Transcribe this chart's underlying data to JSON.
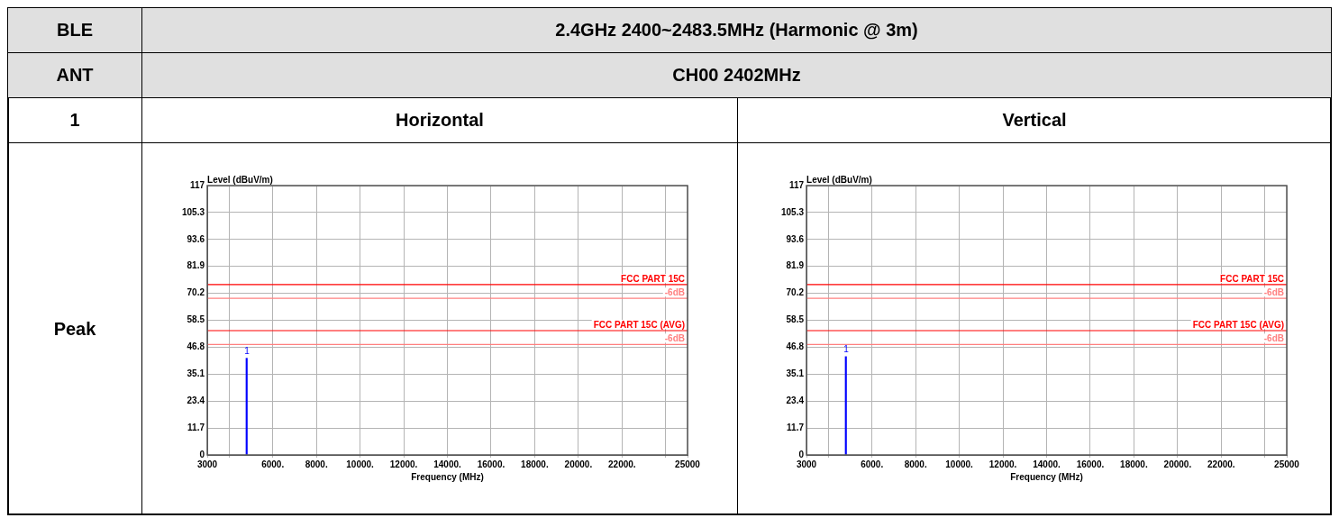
{
  "chart_data": [
    {
      "type": "bar",
      "title": "Horizontal",
      "xlabel": "Frequency (MHz)",
      "ylabel": "Level (dBuV/m)",
      "annotations": [
        "BLE",
        "2.4GHz 2400~2483.5MHz (Harmonic @ 3m)",
        "ANT",
        "CH00 2402MHz",
        "1",
        "Peak",
        {
          "text": "1",
          "x": 4804,
          "y": 42.0
        }
      ],
      "series": [
        {
          "color": "#0000ff",
          "x": [
            4804
          ],
          "values": [
            42.0
          ]
        }
      ],
      "xlim": [
        3000,
        25000
      ],
      "xticks": [
        {
          "value": 3000,
          "label": "3000"
        },
        {
          "value": 4000,
          "label": null
        },
        {
          "value": 6000,
          "label": "6000."
        },
        {
          "value": 8000,
          "label": "8000."
        },
        {
          "value": 10000,
          "label": "10000."
        },
        {
          "value": 12000,
          "label": "12000."
        },
        {
          "value": 14000,
          "label": "14000."
        },
        {
          "value": 16000,
          "label": "16000."
        },
        {
          "value": 18000,
          "label": "18000."
        },
        {
          "value": 20000,
          "label": "20000."
        },
        {
          "value": 22000,
          "label": "22000."
        },
        {
          "value": 24000,
          "label": null
        },
        {
          "value": 25000,
          "label": "25000"
        }
      ],
      "ylim": [
        0,
        117
      ],
      "yticks": [
        0,
        11.7,
        23.4,
        35.1,
        46.8,
        58.5,
        70.2,
        81.9,
        93.6,
        105.3,
        117
      ],
      "grid": true,
      "legend": false,
      "ref_lines": [
        {
          "axis": "y",
          "value": 74,
          "label": "FCC PART 15C",
          "color": "#ff0000"
        },
        {
          "axis": "y",
          "value": 68,
          "label": "-6dB",
          "color": "#ff8080"
        },
        {
          "axis": "y",
          "value": 54,
          "label": "FCC PART 15C (AVG)",
          "color": "#ff0000"
        },
        {
          "axis": "y",
          "value": 48,
          "label": "-6dB",
          "color": "#ff8080"
        }
      ]
    },
    {
      "type": "bar",
      "title": "Vertical",
      "xlabel": "Frequency (MHz)",
      "ylabel": "Level (dBuV/m)",
      "annotations": [
        {
          "text": "1",
          "x": 4804,
          "y": 42.7
        }
      ],
      "series": [
        {
          "color": "#0000ff",
          "x": [
            4804
          ],
          "values": [
            42.7
          ]
        }
      ],
      "xlim": [
        3000,
        25000
      ],
      "xticks": [
        {
          "value": 3000,
          "label": "3000"
        },
        {
          "value": 4000,
          "label": null
        },
        {
          "value": 6000,
          "label": "6000."
        },
        {
          "value": 8000,
          "label": "8000."
        },
        {
          "value": 10000,
          "label": "10000."
        },
        {
          "value": 12000,
          "label": "12000."
        },
        {
          "value": 14000,
          "label": "14000."
        },
        {
          "value": 16000,
          "label": "16000."
        },
        {
          "value": 18000,
          "label": "18000."
        },
        {
          "value": 20000,
          "label": "20000."
        },
        {
          "value": 22000,
          "label": "22000."
        },
        {
          "value": 24000,
          "label": null
        },
        {
          "value": 25000,
          "label": "25000"
        }
      ],
      "ylim": [
        0,
        117
      ],
      "yticks": [
        0,
        11.7,
        23.4,
        35.1,
        46.8,
        58.5,
        70.2,
        81.9,
        93.6,
        105.3,
        117
      ],
      "grid": true,
      "legend": false,
      "ref_lines": [
        {
          "axis": "y",
          "value": 74,
          "label": "FCC PART 15C",
          "color": "#ff0000"
        },
        {
          "axis": "y",
          "value": 68,
          "label": "-6dB",
          "color": "#ff8080"
        },
        {
          "axis": "y",
          "value": 54,
          "label": "FCC PART 15C (AVG)",
          "color": "#ff0000"
        },
        {
          "axis": "y",
          "value": 48,
          "label": "-6dB",
          "color": "#ff8080"
        }
      ]
    }
  ]
}
